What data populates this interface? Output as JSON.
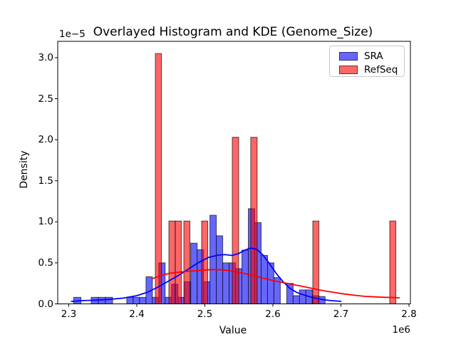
{
  "figure": {
    "title": "Overlayed Histogram and KDE (Genome_Size)",
    "xlabel": "Value",
    "ylabel": "Density",
    "x_offset_text": "1e6",
    "y_offset_text": "1e−5"
  },
  "legend": {
    "items": [
      {
        "label": "SRA",
        "color": "#6666ff"
      },
      {
        "label": "RefSeq",
        "color": "#ff6666"
      }
    ]
  },
  "chart_data": {
    "type": "histogram+kde-overlay",
    "title": "Overlayed Histogram and KDE (Genome_Size)",
    "xlabel": "Value",
    "ylabel": "Density",
    "x_scale_factor": "1e6",
    "y_scale_factor": "1e-5",
    "x_units_note": "x values in millions (1e6), y densities in 1e-5",
    "xlim": [
      2.2838,
      2.8021
    ],
    "ylim": [
      0,
      3.199
    ],
    "grid": false,
    "legend_position": "upper right",
    "x_ticks": [
      {
        "v": 2.3,
        "label": "2.3"
      },
      {
        "v": 2.4,
        "label": "2.4"
      },
      {
        "v": 2.5,
        "label": "2.5"
      },
      {
        "v": 2.6,
        "label": "2.6"
      },
      {
        "v": 2.7,
        "label": "2.7"
      },
      {
        "v": 2.8,
        "label": "2.8"
      }
    ],
    "y_ticks": [
      {
        "v": 0.0,
        "label": "0.0"
      },
      {
        "v": 0.5,
        "label": "0.5"
      },
      {
        "v": 1.0,
        "label": "1.0"
      },
      {
        "v": 1.5,
        "label": "1.5"
      },
      {
        "v": 2.0,
        "label": "2.0"
      },
      {
        "v": 2.5,
        "label": "2.5"
      },
      {
        "v": 3.0,
        "label": "3.0"
      }
    ],
    "series": [
      {
        "name": "SRA",
        "kind": "hist",
        "fill": "#6666ff",
        "edge": "rgba(0,0,0,0.65)",
        "bar_width": 0.0094,
        "bars": [
          [
            2.3071,
            0.08,
            0.0108
          ],
          [
            2.333,
            0.08,
            0.0105
          ],
          [
            2.3435,
            0.08,
            0.0105
          ],
          [
            2.354,
            0.08,
            0.0105
          ],
          [
            2.3853,
            0.08
          ],
          [
            2.3947,
            0.08
          ],
          [
            2.4041,
            0.08
          ],
          [
            2.4135,
            0.33
          ],
          [
            2.4229,
            0.08
          ],
          [
            2.4323,
            0.5
          ],
          [
            2.4417,
            0.08
          ],
          [
            2.4511,
            0.24
          ],
          [
            2.4605,
            0.08
          ],
          [
            2.4699,
            0.27
          ],
          [
            2.4793,
            0.74
          ],
          [
            2.4887,
            0.66
          ],
          [
            2.4981,
            0.27
          ],
          [
            2.5075,
            1.08
          ],
          [
            2.5169,
            0.83
          ],
          [
            2.5263,
            0.5
          ],
          [
            2.5357,
            0.5
          ],
          [
            2.5451,
            0.43
          ],
          [
            2.5545,
            0.655
          ],
          [
            2.5639,
            1.16
          ],
          [
            2.5733,
            0.99
          ],
          [
            2.5827,
            0.59
          ],
          [
            2.5921,
            0.5
          ],
          [
            2.6015,
            0.32
          ],
          [
            2.6203,
            0.25
          ],
          [
            2.6297,
            0.1
          ],
          [
            2.6391,
            0.17
          ],
          [
            2.6485,
            0.17
          ],
          [
            2.6579,
            0.1
          ],
          [
            2.6673,
            0.09
          ]
        ]
      },
      {
        "name": "RefSeq",
        "kind": "hist",
        "fill": "rgba(255,0,0,0.6)",
        "edge": "rgba(0,0,0,0.65)",
        "bar_width": 0.009,
        "bars": [
          [
            2.4272,
            3.05
          ],
          [
            2.4471,
            1.01,
            0.0094
          ],
          [
            2.4565,
            1.01
          ],
          [
            2.4691,
            1.01
          ],
          [
            2.4953,
            1.01
          ],
          [
            2.5403,
            2.03,
            0.0094
          ],
          [
            2.5675,
            2.03,
            0.0094
          ],
          [
            2.6586,
            1.01
          ],
          [
            2.7717,
            1.01
          ]
        ]
      },
      {
        "name": "SRA KDE",
        "kind": "line",
        "color": "#0000ff",
        "line_width": 1.8,
        "points": [
          [
            2.304,
            0.03
          ],
          [
            2.32,
            0.04
          ],
          [
            2.34,
            0.045
          ],
          [
            2.36,
            0.055
          ],
          [
            2.38,
            0.07
          ],
          [
            2.4,
            0.1
          ],
          [
            2.415,
            0.14
          ],
          [
            2.43,
            0.2
          ],
          [
            2.445,
            0.27
          ],
          [
            2.46,
            0.34
          ],
          [
            2.475,
            0.42
          ],
          [
            2.49,
            0.5
          ],
          [
            2.505,
            0.565
          ],
          [
            2.52,
            0.595
          ],
          [
            2.53,
            0.6
          ],
          [
            2.54,
            0.59
          ],
          [
            2.55,
            0.615
          ],
          [
            2.56,
            0.66
          ],
          [
            2.568,
            0.68
          ],
          [
            2.576,
            0.665
          ],
          [
            2.585,
            0.6
          ],
          [
            2.595,
            0.49
          ],
          [
            2.605,
            0.37
          ],
          [
            2.615,
            0.27
          ],
          [
            2.625,
            0.19
          ],
          [
            2.635,
            0.14
          ],
          [
            2.645,
            0.11
          ],
          [
            2.655,
            0.085
          ],
          [
            2.665,
            0.065
          ],
          [
            2.675,
            0.05
          ],
          [
            2.685,
            0.04
          ],
          [
            2.695,
            0.035
          ],
          [
            2.7,
            0.03
          ]
        ]
      },
      {
        "name": "RefSeq KDE",
        "kind": "line",
        "color": "#ff0000",
        "line_width": 1.8,
        "points": [
          [
            2.424,
            0.31
          ],
          [
            2.435,
            0.345
          ],
          [
            2.45,
            0.375
          ],
          [
            2.465,
            0.39
          ],
          [
            2.48,
            0.4
          ],
          [
            2.495,
            0.41
          ],
          [
            2.51,
            0.418
          ],
          [
            2.525,
            0.415
          ],
          [
            2.54,
            0.4
          ],
          [
            2.555,
            0.375
          ],
          [
            2.57,
            0.35
          ],
          [
            2.585,
            0.315
          ],
          [
            2.6,
            0.285
          ],
          [
            2.615,
            0.26
          ],
          [
            2.63,
            0.235
          ],
          [
            2.645,
            0.21
          ],
          [
            2.66,
            0.185
          ],
          [
            2.675,
            0.16
          ],
          [
            2.69,
            0.14
          ],
          [
            2.705,
            0.12
          ],
          [
            2.72,
            0.105
          ],
          [
            2.735,
            0.092
          ],
          [
            2.75,
            0.085
          ],
          [
            2.765,
            0.08
          ],
          [
            2.786,
            0.075
          ]
        ]
      }
    ]
  }
}
